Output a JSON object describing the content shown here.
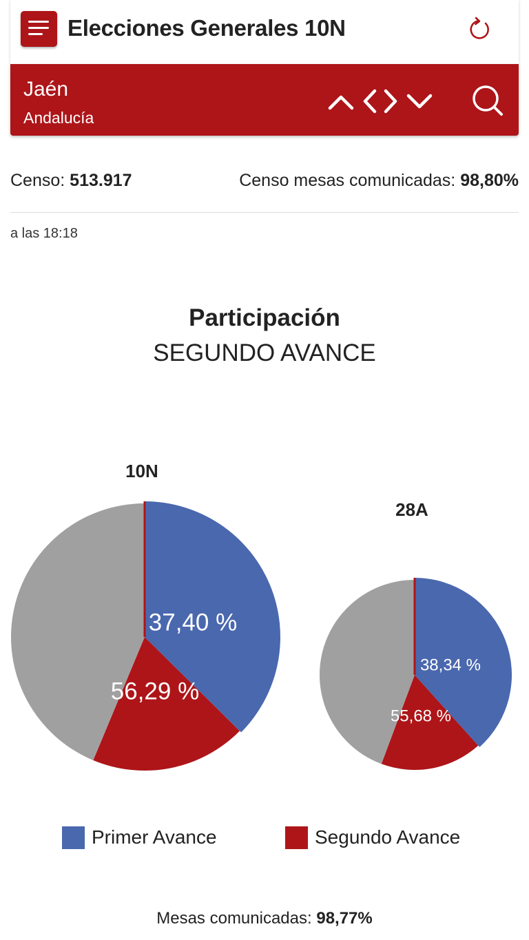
{
  "header": {
    "title": "Elecciones Generales 10N",
    "menu_icon": "menu-icon",
    "refresh_icon": "refresh-icon"
  },
  "location": {
    "name": "Jaén",
    "region": "Andalucía",
    "nav_icons": [
      "chevron-up-icon",
      "chevron-left-icon",
      "chevron-right-icon",
      "chevron-down-icon",
      "search-icon"
    ]
  },
  "stats": {
    "censo_label": "Censo:",
    "censo_value": "513.917",
    "censo_mesas_label": "Censo mesas comunicadas:",
    "censo_mesas_value": "98,80%",
    "time": "a las 18:18"
  },
  "colors": {
    "brand_red": "#ad1519",
    "primer_avance": "#4a68ae",
    "segundo_avance": "#ad1519",
    "remainder": "#a0a0a0"
  },
  "chart_data": {
    "type": "pie",
    "title": "Participación",
    "subtitle": "SEGUNDO AVANCE",
    "charts": [
      {
        "name": "10N",
        "primer_avance": 37.4,
        "segundo_avance": 56.29,
        "primer_label": "37,40 %",
        "segundo_label": "56,29 %"
      },
      {
        "name": "28A",
        "primer_avance": 38.34,
        "segundo_avance": 55.68,
        "primer_label": "38,34 %",
        "segundo_label": "55,68 %"
      }
    ],
    "legend": [
      {
        "label": "Primer Avance",
        "color": "#4a68ae"
      },
      {
        "label": "Segundo Avance",
        "color": "#ad1519"
      }
    ]
  },
  "footer": {
    "mesas_label": "Mesas comunicadas:",
    "mesas_value": "98,77%"
  }
}
